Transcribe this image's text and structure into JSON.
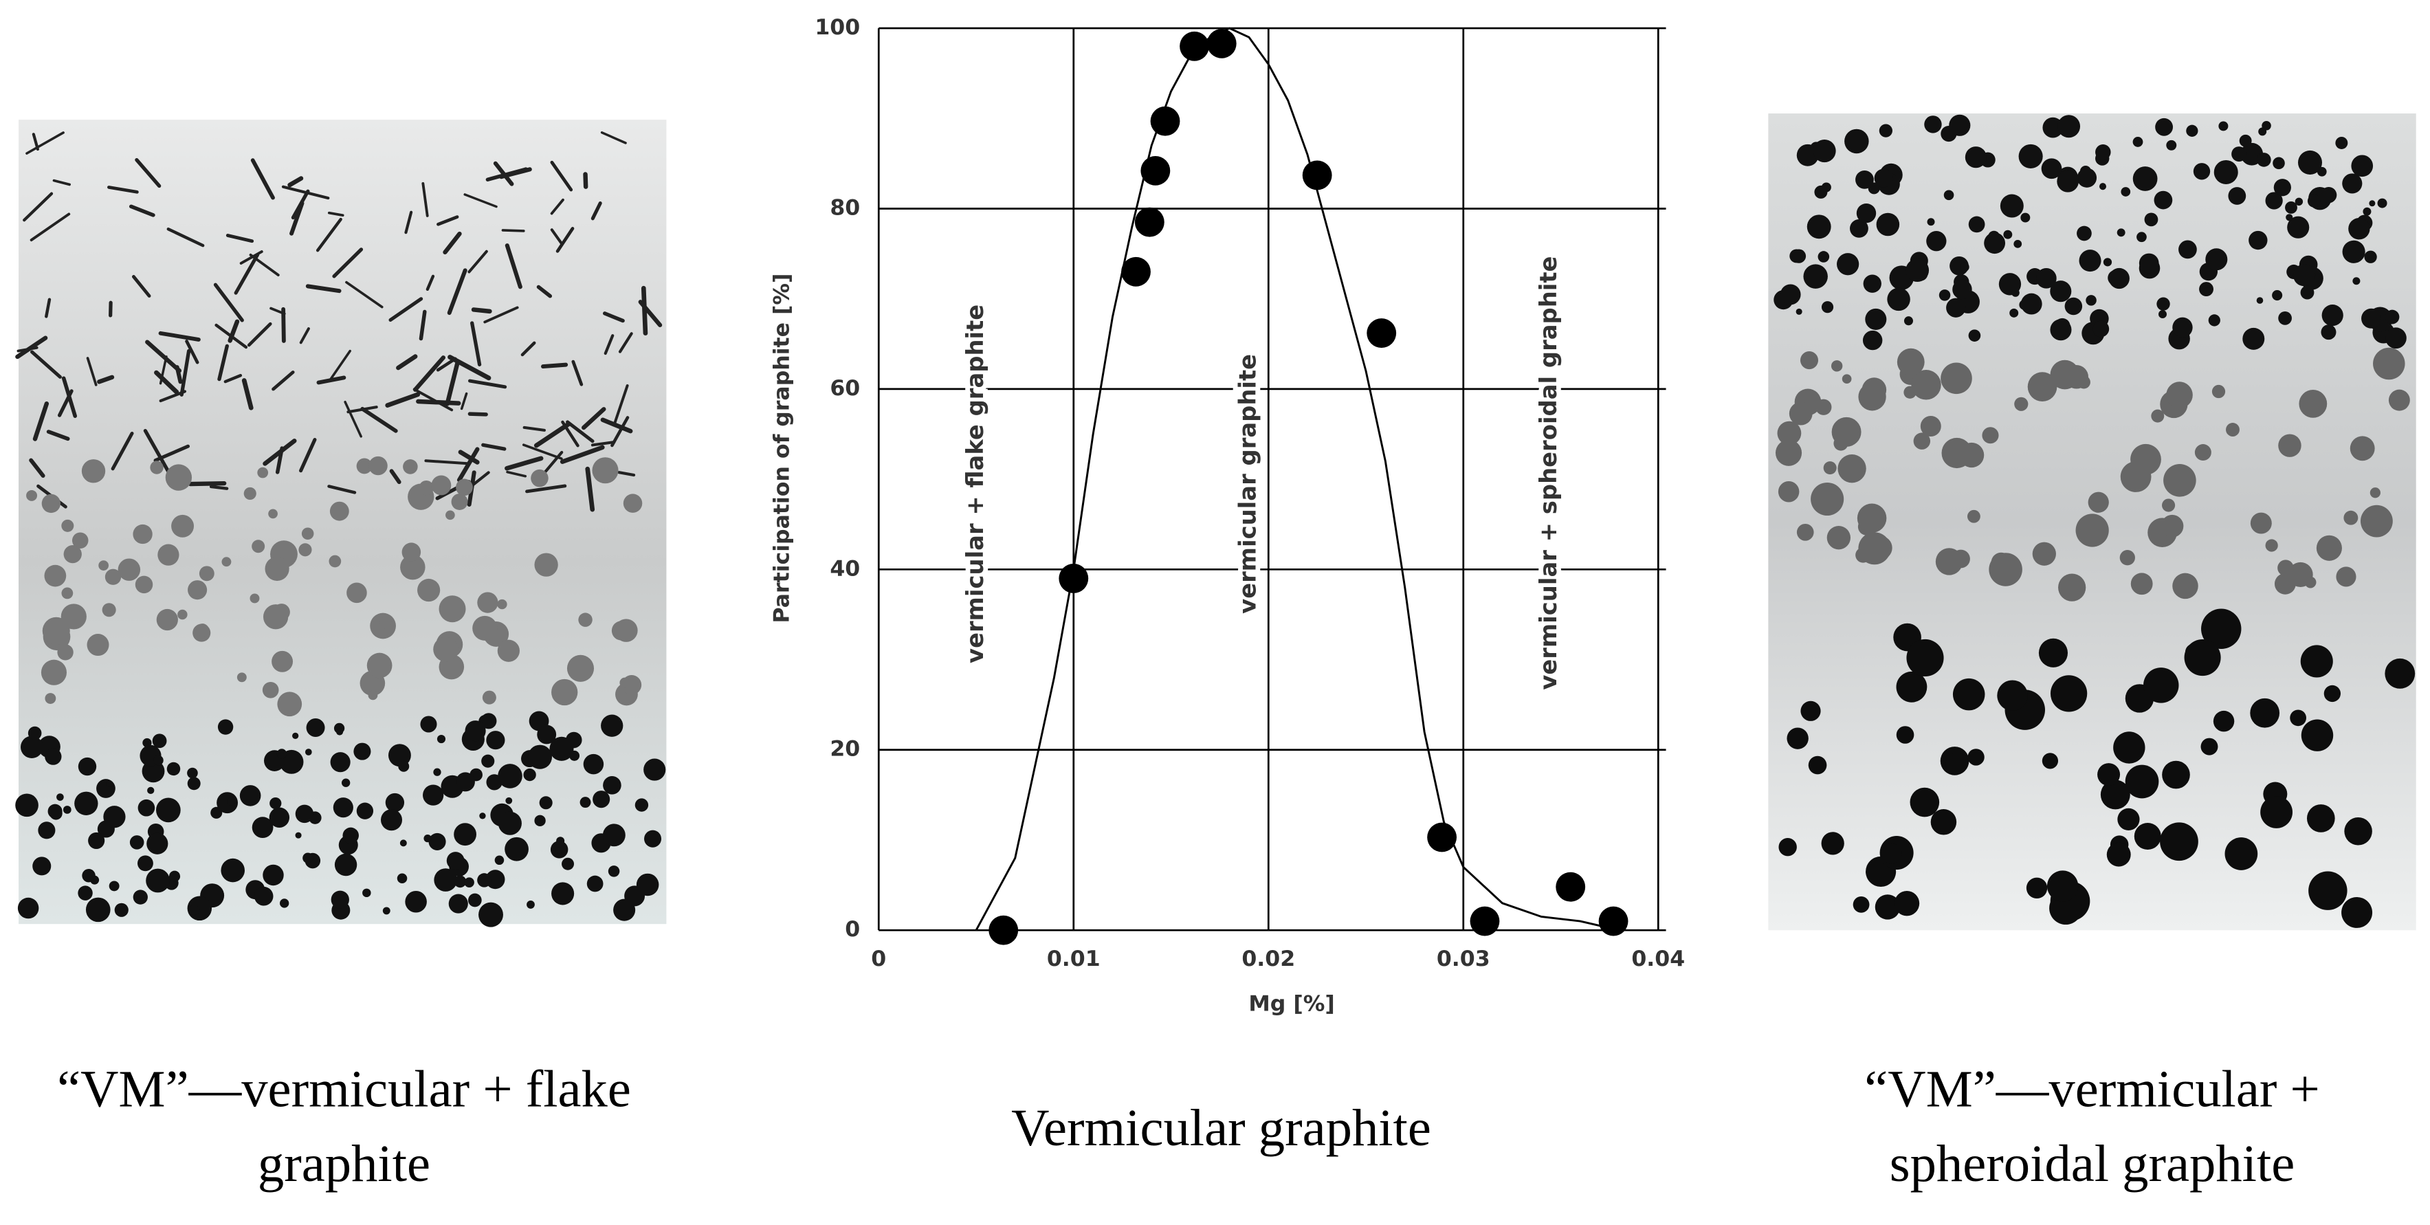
{
  "chart_data": {
    "type": "scatter",
    "ylabel": "Participation of graphite [%]",
    "xlabel": "Mg [%]",
    "annotations": [
      "vermicular + flake graphite",
      "vermicular graphite",
      "vermicular + spheroidal graphite"
    ],
    "xlim": [
      0,
      0.04
    ],
    "ylim": [
      0,
      100
    ],
    "xticks": [
      0,
      0.01,
      0.02,
      0.03,
      0.04
    ],
    "yticks": [
      0,
      20,
      40,
      60,
      80,
      100
    ],
    "grid": true,
    "color": "#000000",
    "points": {
      "x": [
        0.0064,
        0.01,
        0.0132,
        0.0139,
        0.0142,
        0.0147,
        0.0162,
        0.0176,
        0.0225,
        0.0258,
        0.0289,
        0.0311,
        0.0355,
        0.0377
      ],
      "values": [
        0,
        39,
        73,
        78.5,
        84.2,
        89.7,
        98,
        98.3,
        83.7,
        66.2,
        10.3,
        1,
        4.8,
        1
      ]
    },
    "curve": {
      "x": [
        0.005,
        0.007,
        0.009,
        0.01,
        0.011,
        0.012,
        0.013,
        0.014,
        0.015,
        0.016,
        0.017,
        0.018,
        0.019,
        0.02,
        0.021,
        0.022,
        0.023,
        0.024,
        0.025,
        0.026,
        0.027,
        0.028,
        0.029,
        0.03,
        0.032,
        0.034,
        0.036,
        0.038
      ],
      "values": [
        0,
        8,
        28,
        40,
        55,
        68,
        78,
        87,
        93,
        97,
        99,
        100,
        99,
        96,
        92,
        86,
        78,
        70,
        62,
        52,
        38,
        22,
        12,
        7,
        3,
        1.5,
        1,
        0
      ]
    }
  },
  "captions": {
    "left": [
      "“VM”—vermicular + flake",
      "graphite"
    ],
    "center": [
      "Vermicular graphite"
    ],
    "right": [
      "“VM”—vermicular +",
      "spheroidal graphite"
    ]
  }
}
